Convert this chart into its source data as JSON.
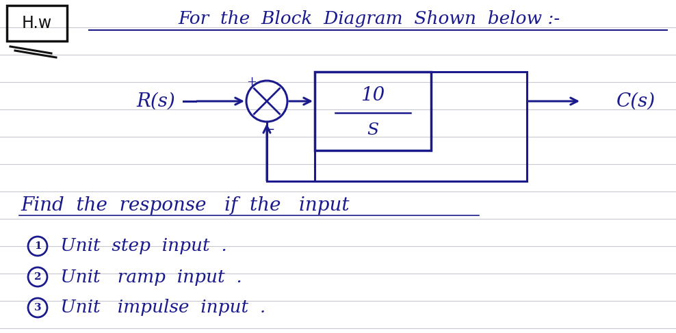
{
  "bg_color": "#ffffff",
  "line_color": "#1a1a8c",
  "ruled_line_color": "#c8c8d0",
  "title_text": "For  the  Block  Diagram  Shown  below :-",
  "hw_label": "H.w",
  "r_label": "R(s)",
  "c_label": "C(s)",
  "tf_num": "10",
  "tf_den": "S",
  "find_text": "Find  the  response   if  the   input",
  "item1_num": "1",
  "item1_text": " Unit  step  input  .",
  "item2_num": "2",
  "item2_text": " Unit   ramp  input  .",
  "item3_num": "3",
  "item3_text": " Unit   impulse  input  .",
  "font_size_title": 19,
  "font_size_body": 18,
  "font_size_hw": 15,
  "font_size_small": 13
}
